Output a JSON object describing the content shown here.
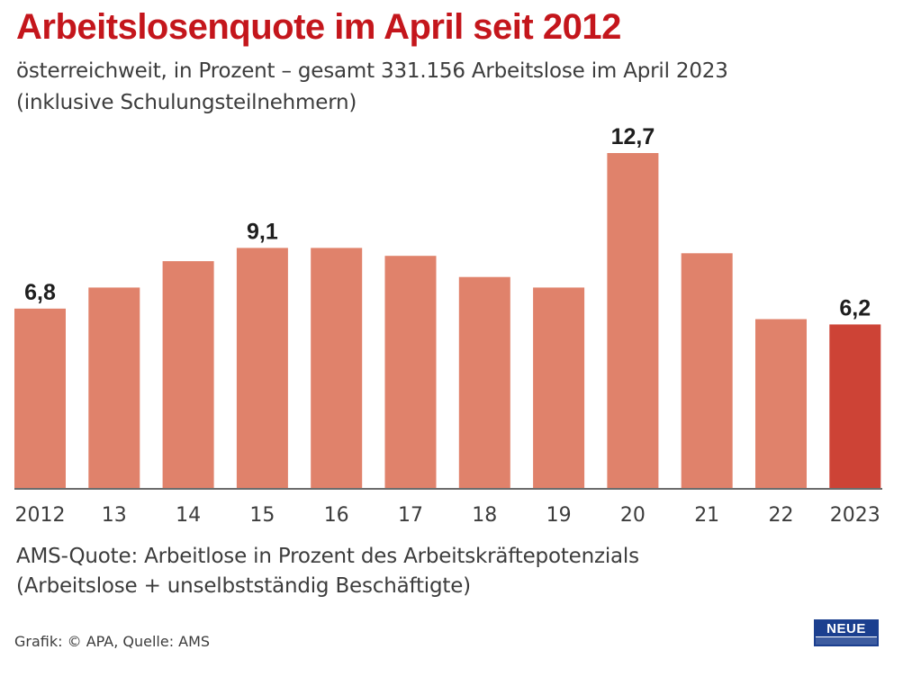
{
  "header": {
    "title": "Arbeitslosenquote im April seit 2012",
    "subtitle_line1": "österreichweit, in Prozent – gesamt 331.156 Arbeitslose im April 2023",
    "subtitle_line2": "(inklusive Schulungsteilnehmern)"
  },
  "chart_data": {
    "type": "bar",
    "categories": [
      "2012",
      "13",
      "14",
      "15",
      "16",
      "17",
      "18",
      "19",
      "20",
      "21",
      "22",
      "2023"
    ],
    "values": [
      6.8,
      7.6,
      8.6,
      9.1,
      9.1,
      8.8,
      8.0,
      7.6,
      12.7,
      8.9,
      6.4,
      6.2
    ],
    "data_labels": [
      {
        "index": 0,
        "text": "6,8"
      },
      {
        "index": 3,
        "text": "9,1"
      },
      {
        "index": 8,
        "text": "12,7"
      },
      {
        "index": 11,
        "text": "6,2"
      }
    ],
    "ylim": [
      0,
      13
    ],
    "grid": false,
    "colors": {
      "bar": "#e0826b",
      "highlight": "#cd4336",
      "baseline": "#3c3c3c"
    },
    "highlight_index": 11
  },
  "footer": {
    "note_line1": "AMS-Quote: Arbeitlose in Prozent des Arbeitskräftepotenzials",
    "note_line2": "(Arbeitslose + unselbstständig Beschäftigte)",
    "source": "Grafik: © APA, Quelle: AMS",
    "logo_text": "NEUE"
  }
}
